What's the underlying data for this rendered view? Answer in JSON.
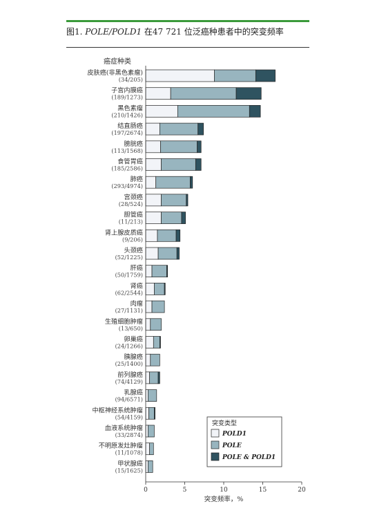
{
  "figure": {
    "title_prefix": "图1. ",
    "title_gene": "POLE/POLD1",
    "title_suffix": " 在47 721 位泛癌种患者中的突变频率",
    "category_header": "癌症种类"
  },
  "colors": {
    "pold1": "#f2f4f8",
    "pole": "#98b5bf",
    "both": "#2f5360",
    "stroke": "#222222",
    "green_rule": "#3a9a3a"
  },
  "chart_data": {
    "type": "bar",
    "orientation": "horizontal",
    "stacked": true,
    "title": "",
    "xlabel": "突变频率，%",
    "ylabel": "癌症种类",
    "xlim": [
      0,
      20
    ],
    "xticks": [
      0,
      5,
      10,
      15,
      20
    ],
    "categories": [
      {
        "name": "皮肤癌(非黑色素瘤)",
        "count": "(34/205)"
      },
      {
        "name": "子宫内膜癌",
        "count": "(189/1273)"
      },
      {
        "name": "黑色素瘤",
        "count": "(210/1426)"
      },
      {
        "name": "结直肠癌",
        "count": "(197/2674)"
      },
      {
        "name": "膀胱癌",
        "count": "(113/1568)"
      },
      {
        "name": "食管胃癌",
        "count": "(185/2586)"
      },
      {
        "name": "肺癌",
        "count": "(293/4974)"
      },
      {
        "name": "宫颈癌",
        "count": "(28/524)"
      },
      {
        "name": "胆管癌",
        "count": "(11/213)"
      },
      {
        "name": "肾上腺皮质癌",
        "count": "(9/206)"
      },
      {
        "name": "头颈癌",
        "count": "(52/1225)"
      },
      {
        "name": "肝癌",
        "count": "(50/1759)"
      },
      {
        "name": "肾癌",
        "count": "(62/2544)"
      },
      {
        "name": "肉瘤",
        "count": "(27/1131)"
      },
      {
        "name": "生殖细胞肿瘤",
        "count": "(13/650)"
      },
      {
        "name": "卵巢癌",
        "count": "(24/1266)"
      },
      {
        "name": "胰腺癌",
        "count": "(25/1400)"
      },
      {
        "name": "前列腺癌",
        "count": "(74/4129)"
      },
      {
        "name": "乳腺癌",
        "count": "(94/6571)"
      },
      {
        "name": "中枢神经系统肿瘤",
        "count": "(54/4159)"
      },
      {
        "name": "血液系统肿瘤",
        "count": "(33/2874)"
      },
      {
        "name": "不明原发灶肿瘤",
        "count": "(11/1078)"
      },
      {
        "name": "甲状腺癌",
        "count": "(15/1625)"
      }
    ],
    "series": [
      {
        "name": "POLD1",
        "color": "#f2f4f8",
        "values": [
          8.8,
          3.2,
          4.1,
          1.8,
          1.9,
          2.0,
          1.3,
          2.0,
          2.0,
          1.5,
          1.6,
          0.8,
          1.1,
          0.8,
          0.6,
          1.0,
          0.6,
          0.5,
          0.3,
          0.4,
          0.3,
          0.5,
          0.3
        ]
      },
      {
        "name": "POLE",
        "color": "#98b5bf",
        "values": [
          5.3,
          8.4,
          9.2,
          4.9,
          4.7,
          4.4,
          4.4,
          3.2,
          2.6,
          2.4,
          2.4,
          1.9,
          1.3,
          1.6,
          1.4,
          0.8,
          1.2,
          1.1,
          1.1,
          0.7,
          0.8,
          0.5,
          0.6
        ]
      },
      {
        "name": "POLE & POLD1",
        "color": "#2f5360",
        "values": [
          2.5,
          3.2,
          1.4,
          0.7,
          0.5,
          0.7,
          0.3,
          0.2,
          0.5,
          0.5,
          0.3,
          0.1,
          0.1,
          0.0,
          0.0,
          0.1,
          0.0,
          0.2,
          0.0,
          0.1,
          0.0,
          0.0,
          0.0
        ]
      }
    ],
    "legend": {
      "title": "突变类型",
      "placement": "bottom-right",
      "items": [
        "POLD1",
        "POLE",
        "POLE & POLD1"
      ]
    },
    "grid": false
  }
}
